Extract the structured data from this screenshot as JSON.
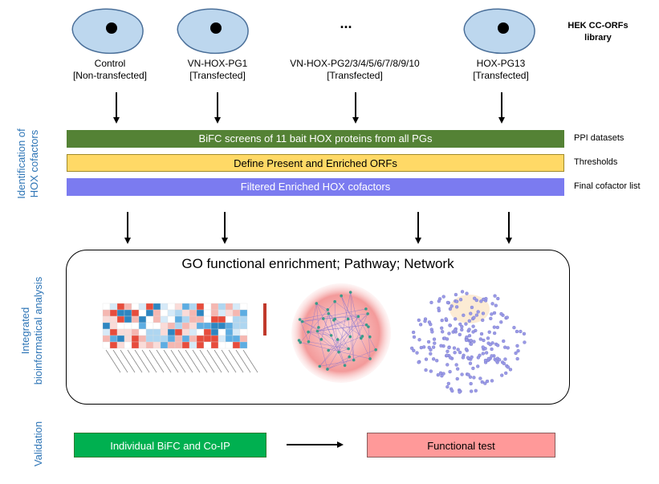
{
  "library": {
    "line1": "HEK CC-ORFs",
    "line2": "library"
  },
  "ellipsis": "...",
  "cells": [
    {
      "line1": "Control",
      "line2": "[Non-transfected]"
    },
    {
      "line1": "VN-HOX-PG1",
      "line2": "[Transfected]"
    },
    {
      "line1": "VN-HOX-PG2/3/4/5/6/7/8/9/10",
      "line2": "[Transfected]"
    },
    {
      "line1": "HOX-PG13",
      "line2": "[Transfected]"
    }
  ],
  "bars": [
    {
      "label": "BiFC screens of 11 bait HOX proteins from all PGs",
      "side": "PPI datasets",
      "color": "#548235",
      "text_color": "#ffffff"
    },
    {
      "label": "Define Present and Enriched ORFs",
      "side": "Thresholds",
      "color": "#ffd966",
      "text_color": "#000000"
    },
    {
      "label": "Filtered Enriched HOX cofactors",
      "side": "Final cofactor list",
      "color": "#7b7bf0",
      "text_color": "#ffffff"
    }
  ],
  "section_labels": {
    "identification": {
      "line1": "Identification of",
      "line2": "HOX cofactors"
    },
    "integrated": {
      "line1": "Integrated",
      "line2": "bioinformatical analysis"
    },
    "validation": "Validation"
  },
  "analysis": {
    "title": "GO functional enrichment; Pathway; Network"
  },
  "validation": {
    "left": {
      "label": "Individual BiFC and Co-IP",
      "color": "#00b050"
    },
    "right": {
      "label": "Functional test",
      "color": "#ff9999"
    }
  },
  "colors": {
    "section_label": "#2e75b6",
    "cell_fill": "#bdd7ee",
    "cell_stroke": "#4a6f99"
  }
}
